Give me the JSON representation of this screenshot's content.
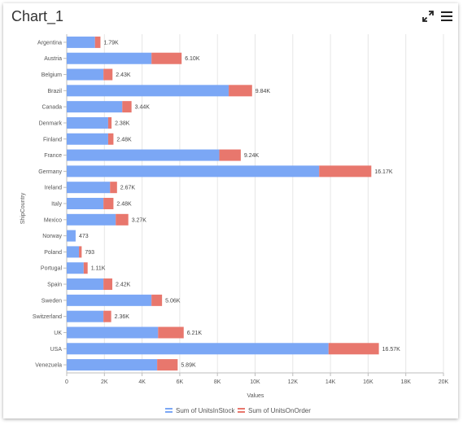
{
  "widget": {
    "title": "Chart_1",
    "icons": {
      "expand": "expand-icon",
      "menu": "hamburger-menu-icon"
    }
  },
  "chart_data": {
    "type": "bar",
    "orientation": "horizontal",
    "stacked": true,
    "categories": [
      "Argentina",
      "Austria",
      "Belgium",
      "Brazil",
      "Canada",
      "Denmark",
      "Finland",
      "France",
      "Germany",
      "Ireland",
      "Italy",
      "Mexico",
      "Norway",
      "Poland",
      "Portugal",
      "Spain",
      "Sweden",
      "Switzerland",
      "UK",
      "USA",
      "Venezuela"
    ],
    "series": [
      {
        "name": "Sum of UnitsInStock",
        "color": "#7BA7F5",
        "values": [
          1500,
          4500,
          1950,
          8600,
          2950,
          2200,
          2200,
          8100,
          13400,
          2300,
          1950,
          2600,
          473,
          650,
          900,
          1950,
          4500,
          1950,
          4850,
          13900,
          4800
        ]
      },
      {
        "name": "Sum of UnitsOnOrder",
        "color": "#E8776D",
        "values": [
          290,
          1600,
          480,
          1240,
          490,
          180,
          280,
          1140,
          2770,
          370,
          530,
          670,
          0,
          143,
          210,
          470,
          560,
          410,
          1360,
          2670,
          1090
        ]
      }
    ],
    "data_labels": [
      "1.79K",
      "6.10K",
      "2.43K",
      "9.84K",
      "3.44K",
      "2.38K",
      "2.48K",
      "9.24K",
      "16.17K",
      "2.67K",
      "2.48K",
      "3.27K",
      "473",
      "793",
      "1.11K",
      "2.42K",
      "5.06K",
      "2.36K",
      "6.21K",
      "16.57K",
      "5.89K"
    ],
    "totals": [
      1790,
      6100,
      2430,
      9840,
      3440,
      2380,
      2480,
      9240,
      16170,
      2670,
      2480,
      3270,
      473,
      793,
      1110,
      2420,
      5060,
      2360,
      6210,
      16570,
      5890
    ],
    "xlabel": "Values",
    "ylabel": "ShipCountry",
    "xlim": [
      0,
      20000
    ],
    "x_ticks": [
      0,
      2000,
      4000,
      6000,
      8000,
      10000,
      12000,
      14000,
      16000,
      18000,
      20000
    ],
    "x_tick_labels": [
      "0",
      "2K",
      "4K",
      "6K",
      "8K",
      "10K",
      "12K",
      "14K",
      "16K",
      "18K",
      "20K"
    ],
    "grid": true,
    "legend_position": "bottom"
  }
}
